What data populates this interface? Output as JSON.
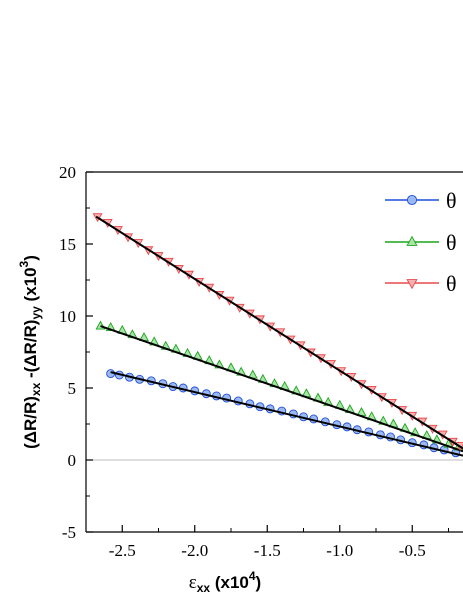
{
  "chart_data": {
    "type": "scatter",
    "xlabel": {
      "main": "ε",
      "sub": "xx",
      "rest": " (x10",
      "sup": "4",
      "end": ")"
    },
    "ylabel": {
      "p1": "(ΔR/R)",
      "s1": "xx",
      "p2": " -(ΔR/R)",
      "s2": "yy",
      "p3": " (x10",
      "sup": "3",
      "end": ")"
    },
    "xlim": [
      -2.75,
      -0.15
    ],
    "ylim": [
      -5,
      20
    ],
    "x_ticks": [
      -2.5,
      -2.0,
      -1.5,
      -1.0,
      -0.5
    ],
    "x_tick_labels": [
      "-2.5",
      "-2.0",
      "-1.5",
      "-1.0",
      "-0.5"
    ],
    "y_ticks": [
      -5,
      0,
      5,
      10,
      15,
      20
    ],
    "y_tick_labels": [
      "-5",
      "0",
      "5",
      "10",
      "15",
      "20"
    ],
    "zero_line": true,
    "legend_position": "top-right",
    "series": [
      {
        "name": "θ",
        "marker": "circle",
        "color": "#1f4ed8",
        "fill": "#9bb8f0",
        "fit": {
          "x": [
            -2.58,
            -0.15
          ],
          "y": [
            6.1,
            0.3
          ]
        },
        "points": [
          [
            -2.58,
            6.0
          ],
          [
            -2.52,
            5.9
          ],
          [
            -2.45,
            5.75
          ],
          [
            -2.38,
            5.6
          ],
          [
            -2.3,
            5.5
          ],
          [
            -2.22,
            5.3
          ],
          [
            -2.15,
            5.1
          ],
          [
            -2.08,
            5.0
          ],
          [
            -2.0,
            4.8
          ],
          [
            -1.92,
            4.6
          ],
          [
            -1.85,
            4.45
          ],
          [
            -1.78,
            4.3
          ],
          [
            -1.7,
            4.1
          ],
          [
            -1.62,
            3.9
          ],
          [
            -1.55,
            3.7
          ],
          [
            -1.48,
            3.55
          ],
          [
            -1.4,
            3.4
          ],
          [
            -1.32,
            3.2
          ],
          [
            -1.25,
            3.0
          ],
          [
            -1.18,
            2.85
          ],
          [
            -1.1,
            2.65
          ],
          [
            -1.02,
            2.45
          ],
          [
            -0.95,
            2.3
          ],
          [
            -0.88,
            2.1
          ],
          [
            -0.8,
            1.95
          ],
          [
            -0.72,
            1.75
          ],
          [
            -0.65,
            1.6
          ],
          [
            -0.58,
            1.4
          ],
          [
            -0.5,
            1.2
          ],
          [
            -0.42,
            1.05
          ],
          [
            -0.35,
            0.85
          ],
          [
            -0.28,
            0.7
          ],
          [
            -0.2,
            0.5
          ]
        ]
      },
      {
        "name": "θ",
        "marker": "triangle-up",
        "color": "#1aa51a",
        "fill": "#a8e4a8",
        "fit": {
          "x": [
            -2.65,
            -0.15
          ],
          "y": [
            9.3,
            0.6
          ]
        },
        "points": [
          [
            -2.65,
            9.3
          ],
          [
            -2.58,
            9.2
          ],
          [
            -2.5,
            9.0
          ],
          [
            -2.43,
            8.7
          ],
          [
            -2.35,
            8.5
          ],
          [
            -2.28,
            8.2
          ],
          [
            -2.2,
            7.9
          ],
          [
            -2.13,
            7.7
          ],
          [
            -2.05,
            7.4
          ],
          [
            -1.98,
            7.2
          ],
          [
            -1.9,
            6.9
          ],
          [
            -1.83,
            6.6
          ],
          [
            -1.75,
            6.4
          ],
          [
            -1.68,
            6.1
          ],
          [
            -1.6,
            5.9
          ],
          [
            -1.53,
            5.6
          ],
          [
            -1.45,
            5.3
          ],
          [
            -1.38,
            5.1
          ],
          [
            -1.3,
            4.8
          ],
          [
            -1.23,
            4.6
          ],
          [
            -1.15,
            4.3
          ],
          [
            -1.08,
            4.0
          ],
          [
            -1.0,
            3.8
          ],
          [
            -0.93,
            3.5
          ],
          [
            -0.85,
            3.3
          ],
          [
            -0.78,
            3.0
          ],
          [
            -0.7,
            2.7
          ],
          [
            -0.63,
            2.5
          ],
          [
            -0.55,
            2.2
          ],
          [
            -0.48,
            1.9
          ],
          [
            -0.4,
            1.7
          ],
          [
            -0.33,
            1.4
          ],
          [
            -0.25,
            1.1
          ],
          [
            -0.18,
            0.9
          ]
        ]
      },
      {
        "name": "θ",
        "marker": "triangle-down",
        "color": "#e8484a",
        "fill": "#f7b0b0",
        "fit": {
          "x": [
            -2.68,
            -0.15
          ],
          "y": [
            16.9,
            0.8
          ]
        },
        "points": [
          [
            -2.67,
            16.9
          ],
          [
            -2.6,
            16.5
          ],
          [
            -2.53,
            16.0
          ],
          [
            -2.46,
            15.5
          ],
          [
            -2.39,
            15.1
          ],
          [
            -2.32,
            14.6
          ],
          [
            -2.25,
            14.2
          ],
          [
            -2.18,
            13.8
          ],
          [
            -2.11,
            13.3
          ],
          [
            -2.04,
            12.9
          ],
          [
            -1.97,
            12.4
          ],
          [
            -1.9,
            12.0
          ],
          [
            -1.83,
            11.5
          ],
          [
            -1.76,
            11.1
          ],
          [
            -1.69,
            10.6
          ],
          [
            -1.62,
            10.2
          ],
          [
            -1.55,
            9.8
          ],
          [
            -1.48,
            9.3
          ],
          [
            -1.41,
            8.9
          ],
          [
            -1.34,
            8.4
          ],
          [
            -1.27,
            8.0
          ],
          [
            -1.2,
            7.5
          ],
          [
            -1.13,
            7.1
          ],
          [
            -1.06,
            6.7
          ],
          [
            -0.99,
            6.2
          ],
          [
            -0.92,
            5.8
          ],
          [
            -0.85,
            5.3
          ],
          [
            -0.78,
            4.9
          ],
          [
            -0.71,
            4.4
          ],
          [
            -0.64,
            4.0
          ],
          [
            -0.57,
            3.5
          ],
          [
            -0.5,
            3.1
          ],
          [
            -0.43,
            2.7
          ],
          [
            -0.36,
            2.2
          ],
          [
            -0.29,
            1.8
          ],
          [
            -0.22,
            1.3
          ],
          [
            -0.17,
            1.0
          ]
        ]
      }
    ]
  }
}
